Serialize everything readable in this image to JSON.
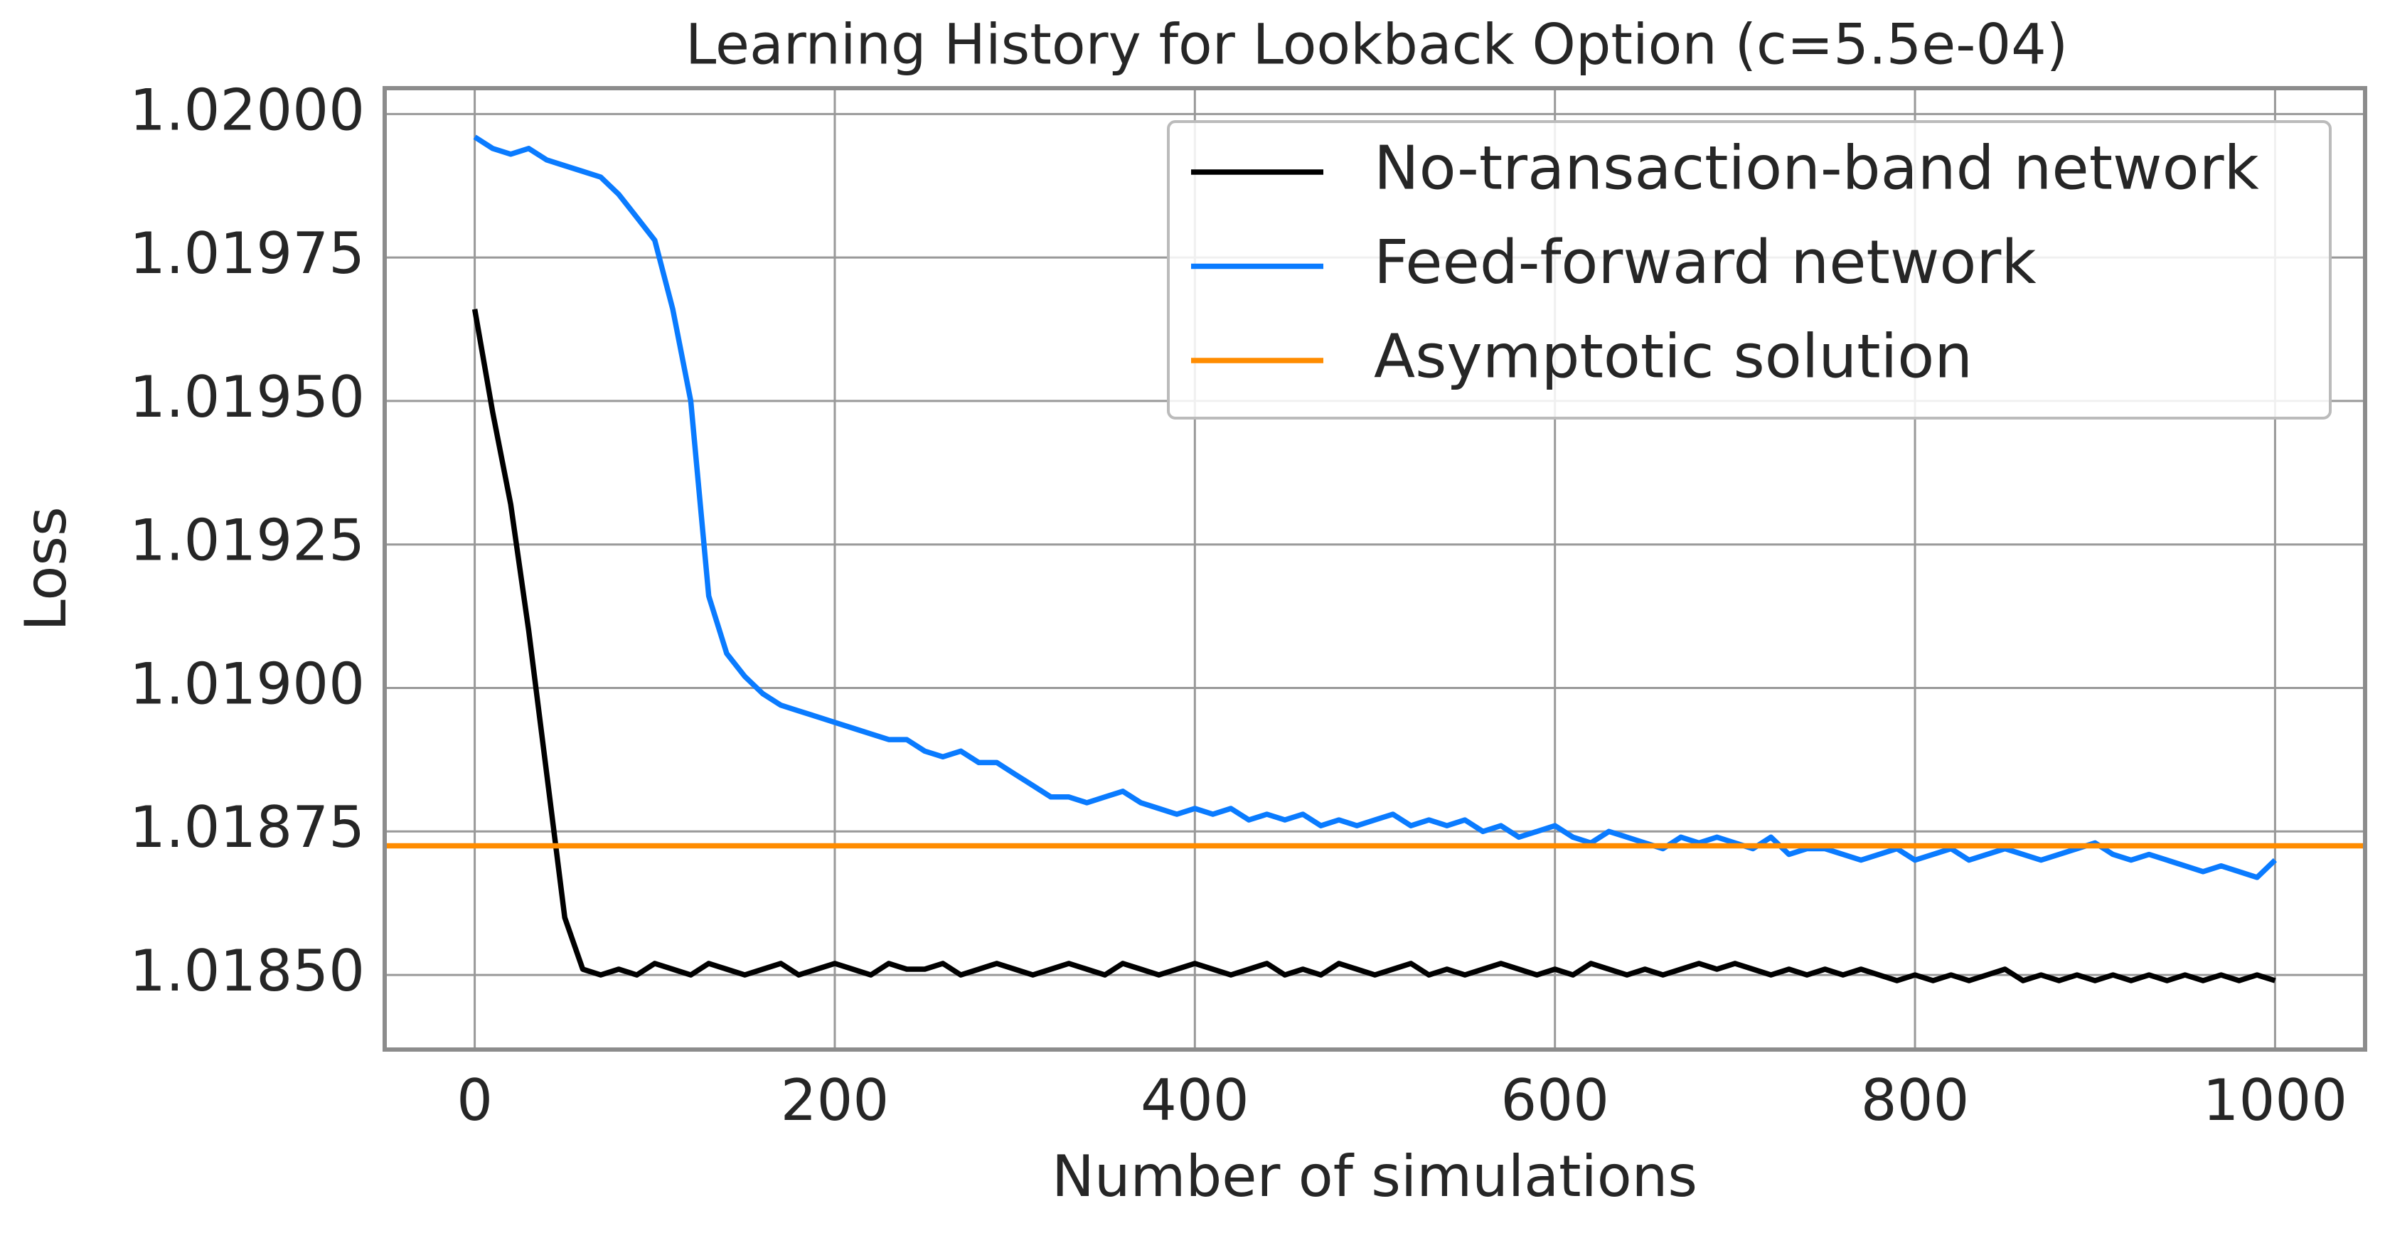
{
  "chart_data": {
    "type": "line",
    "title": "Learning History for Lookback Option (c=5.5e-04)",
    "xlabel": "Number of simulations",
    "ylabel": "Loss",
    "x": [
      0,
      10,
      20,
      30,
      40,
      50,
      60,
      70,
      80,
      90,
      100,
      110,
      120,
      130,
      140,
      150,
      160,
      170,
      180,
      190,
      200,
      210,
      220,
      230,
      240,
      250,
      260,
      270,
      280,
      290,
      300,
      310,
      320,
      330,
      340,
      350,
      360,
      370,
      380,
      390,
      400,
      410,
      420,
      430,
      440,
      450,
      460,
      470,
      480,
      490,
      500,
      510,
      520,
      530,
      540,
      550,
      560,
      570,
      580,
      590,
      600,
      610,
      620,
      630,
      640,
      650,
      660,
      670,
      680,
      690,
      700,
      710,
      720,
      730,
      740,
      750,
      760,
      770,
      780,
      790,
      800,
      810,
      820,
      830,
      840,
      850,
      860,
      870,
      880,
      890,
      900,
      910,
      920,
      930,
      940,
      950,
      960,
      970,
      980,
      990,
      1000
    ],
    "series": [
      {
        "name": "No-transaction-band network",
        "color": "#000000",
        "values": [
          1.01966,
          1.01948,
          1.01932,
          1.0191,
          1.01885,
          1.0186,
          1.01851,
          1.0185,
          1.01851,
          1.0185,
          1.01852,
          1.01851,
          1.0185,
          1.01852,
          1.01851,
          1.0185,
          1.01851,
          1.01852,
          1.0185,
          1.01851,
          1.01852,
          1.01851,
          1.0185,
          1.01852,
          1.01851,
          1.01851,
          1.01852,
          1.0185,
          1.01851,
          1.01852,
          1.01851,
          1.0185,
          1.01851,
          1.01852,
          1.01851,
          1.0185,
          1.01852,
          1.01851,
          1.0185,
          1.01851,
          1.01852,
          1.01851,
          1.0185,
          1.01851,
          1.01852,
          1.0185,
          1.01851,
          1.0185,
          1.01852,
          1.01851,
          1.0185,
          1.01851,
          1.01852,
          1.0185,
          1.01851,
          1.0185,
          1.01851,
          1.01852,
          1.01851,
          1.0185,
          1.01851,
          1.0185,
          1.01852,
          1.01851,
          1.0185,
          1.01851,
          1.0185,
          1.01851,
          1.01852,
          1.01851,
          1.01852,
          1.01851,
          1.0185,
          1.01851,
          1.0185,
          1.01851,
          1.0185,
          1.01851,
          1.0185,
          1.01849,
          1.0185,
          1.01849,
          1.0185,
          1.01849,
          1.0185,
          1.01851,
          1.01849,
          1.0185,
          1.01849,
          1.0185,
          1.01849,
          1.0185,
          1.01849,
          1.0185,
          1.01849,
          1.0185,
          1.01849,
          1.0185,
          1.01849,
          1.0185,
          1.01849
        ]
      },
      {
        "name": "Feed-forward network",
        "color": "#0a7bff",
        "values": [
          1.01996,
          1.01994,
          1.01993,
          1.01994,
          1.01992,
          1.01991,
          1.0199,
          1.01989,
          1.01986,
          1.01982,
          1.01978,
          1.01966,
          1.0195,
          1.01916,
          1.01906,
          1.01902,
          1.01899,
          1.01897,
          1.01896,
          1.01895,
          1.01894,
          1.01893,
          1.01892,
          1.01891,
          1.01891,
          1.01889,
          1.01888,
          1.01889,
          1.01887,
          1.01887,
          1.01885,
          1.01883,
          1.01881,
          1.01881,
          1.0188,
          1.01881,
          1.01882,
          1.0188,
          1.01879,
          1.01878,
          1.01879,
          1.01878,
          1.01879,
          1.01877,
          1.01878,
          1.01877,
          1.01878,
          1.01876,
          1.01877,
          1.01876,
          1.01877,
          1.01878,
          1.01876,
          1.01877,
          1.01876,
          1.01877,
          1.01875,
          1.01876,
          1.01874,
          1.01875,
          1.01876,
          1.01874,
          1.01873,
          1.01875,
          1.01874,
          1.01873,
          1.01872,
          1.01874,
          1.01873,
          1.01874,
          1.01873,
          1.01872,
          1.01874,
          1.01871,
          1.01872,
          1.01872,
          1.01871,
          1.0187,
          1.01871,
          1.01872,
          1.0187,
          1.01871,
          1.01872,
          1.0187,
          1.01871,
          1.01872,
          1.01871,
          1.0187,
          1.01871,
          1.01872,
          1.01873,
          1.01871,
          1.0187,
          1.01871,
          1.0187,
          1.01869,
          1.01868,
          1.01869,
          1.01868,
          1.01867,
          1.0187
        ]
      },
      {
        "name": "Asymptotic solution",
        "color": "#ff8c00",
        "value": 1.018725
      }
    ],
    "xlim": [
      -50,
      1050
    ],
    "ylim": [
      1.01837,
      1.020045
    ],
    "xticks": [
      0,
      200,
      400,
      600,
      800,
      1000
    ],
    "yticks": [
      {
        "value": 1.0185,
        "label": "1.01850"
      },
      {
        "value": 1.01875,
        "label": "1.01875"
      },
      {
        "value": 1.019,
        "label": "1.01900"
      },
      {
        "value": 1.01925,
        "label": "1.01925"
      },
      {
        "value": 1.0195,
        "label": "1.01950"
      },
      {
        "value": 1.01975,
        "label": "1.01975"
      },
      {
        "value": 1.02,
        "label": "1.02000"
      }
    ],
    "grid": true,
    "legend": "upper right"
  }
}
